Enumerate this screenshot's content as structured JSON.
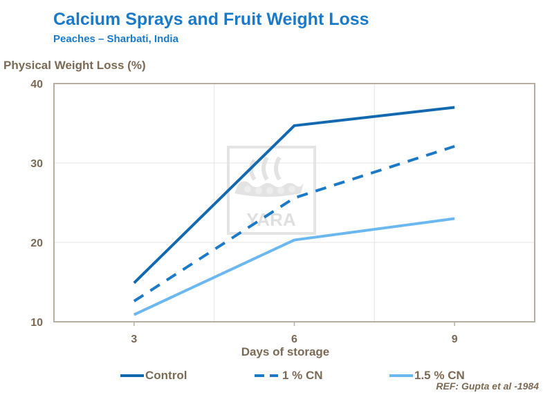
{
  "colors": {
    "control": "#1269b0",
    "cn1": "#1a7ac7",
    "cn15": "#6ab8ef",
    "axis_text": "#7a6a55",
    "frame": "#b7ada0",
    "grid": "#e5e5e5"
  },
  "watermark": {
    "text": "YARA",
    "icon": "viking-ship-logo-icon"
  },
  "reference": "REF: Gupta et al -1984",
  "chart_data": {
    "type": "line",
    "title": "Calcium Sprays and Fruit Weight Loss",
    "subtitle": "Peaches – Sharbati, India",
    "xlabel": "Days of storage",
    "ylabel": "Physical Weight Loss (%)",
    "x": [
      3,
      6,
      9
    ],
    "ylim": [
      10,
      40
    ],
    "yticks": [
      10,
      20,
      30,
      40
    ],
    "grid": true,
    "legend_position": "bottom",
    "series": [
      {
        "name": "Control",
        "values": [
          14.9,
          34.7,
          37.0
        ],
        "style": "solid",
        "color": "#1269b0"
      },
      {
        "name": "1 % CN",
        "values": [
          12.6,
          25.6,
          32.1
        ],
        "style": "dashed",
        "color": "#1a7ac7"
      },
      {
        "name": "1.5 % CN",
        "values": [
          10.9,
          20.3,
          23.0
        ],
        "style": "solid",
        "color": "#6ab8ef"
      }
    ]
  }
}
